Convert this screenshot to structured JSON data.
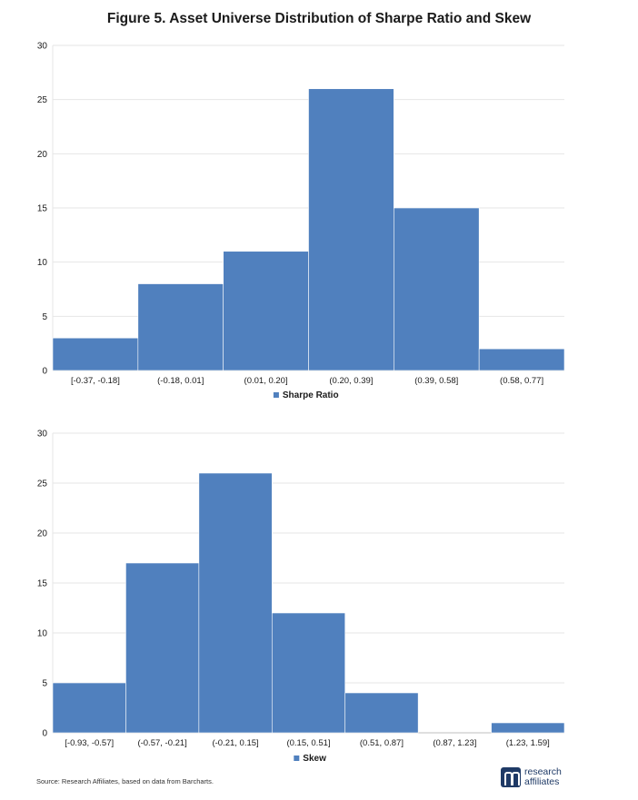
{
  "figure_title": "Figure 5. Asset Universe Distribution of Sharpe Ratio and Skew",
  "source": "Source: Research Affiliates, based on data from Barcharts.",
  "logo": {
    "line1": "research",
    "line2": "affiliates"
  },
  "colors": {
    "bar": "#5080be",
    "grid": "#e6e6e6",
    "axis": "#bfbfbf",
    "text": "#1a1a1a"
  },
  "chart_data": [
    {
      "type": "bar",
      "categories": [
        "[-0.37, -0.18]",
        "(-0.18, 0.01]",
        "(0.01, 0.20]",
        "(0.20, 0.39]",
        "(0.39, 0.58]",
        "(0.58, 0.77]"
      ],
      "series": [
        {
          "name": "Sharpe Ratio",
          "values": [
            3,
            8,
            11,
            26,
            15,
            2
          ]
        }
      ],
      "ylim": [
        0,
        30
      ],
      "yticks": [
        0,
        5,
        10,
        15,
        20,
        25,
        30
      ],
      "grid": true,
      "legend": "bottom-center"
    },
    {
      "type": "bar",
      "categories": [
        "[-0.93, -0.57]",
        "(-0.57, -0.21]",
        "(-0.21, 0.15]",
        "(0.15, 0.51]",
        "(0.51, 0.87]",
        "(0.87, 1.23]",
        "(1.23, 1.59]"
      ],
      "series": [
        {
          "name": "Skew",
          "values": [
            5,
            17,
            26,
            12,
            4,
            0,
            1
          ]
        }
      ],
      "ylim": [
        0,
        30
      ],
      "yticks": [
        0,
        5,
        10,
        15,
        20,
        25,
        30
      ],
      "grid": true,
      "legend": "bottom-center"
    }
  ]
}
